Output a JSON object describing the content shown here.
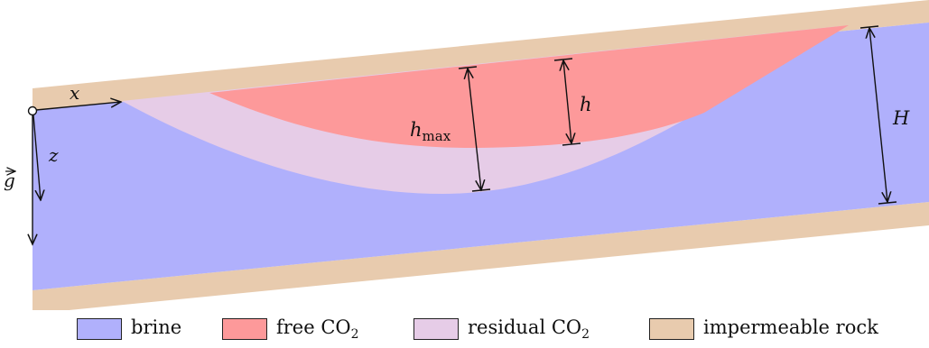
{
  "colors": {
    "brine": "#b0b0fc",
    "free_co2": "#fd999a",
    "residual_co2": "#e6cce7",
    "rock": "#e8cbae",
    "line": "#111111"
  },
  "labels": {
    "x": "x",
    "z": "z",
    "g_vec": "g",
    "h_max_main": "h",
    "h_max_sub": "max",
    "h": "h",
    "H": "H"
  },
  "legend": [
    {
      "label": "brine",
      "sub": "",
      "color_key": "brine"
    },
    {
      "label": "free CO",
      "sub": "2",
      "color_key": "free_co2"
    },
    {
      "label": "residual CO",
      "sub": "2",
      "color_key": "residual_co2"
    },
    {
      "label": "impermeable rock",
      "sub": "",
      "color_key": "rock"
    }
  ]
}
